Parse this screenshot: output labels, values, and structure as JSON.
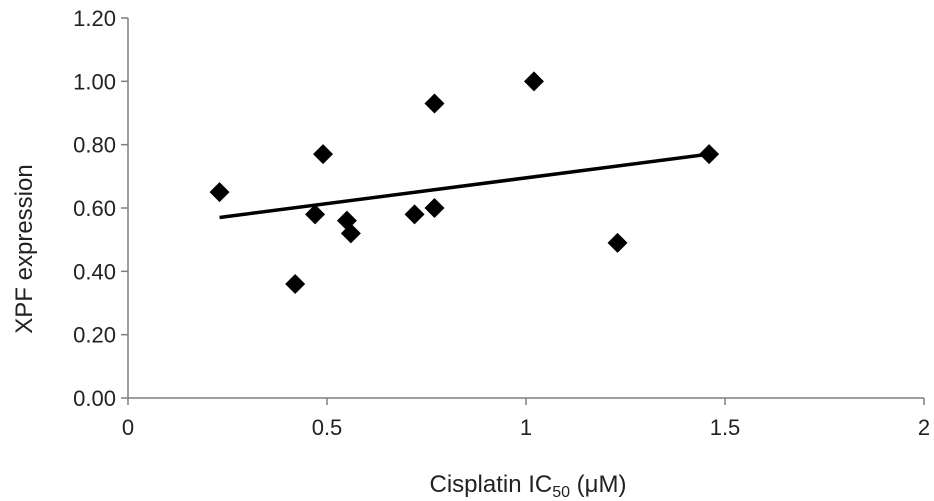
{
  "chart_data": {
    "type": "scatter",
    "title": "",
    "xlabel": {
      "main": "Cisplatin  IC",
      "subscript": "50",
      "unit": " (μM)"
    },
    "ylabel": "XPF expression",
    "xlim": [
      0,
      2
    ],
    "ylim": [
      0,
      1.2
    ],
    "x_ticks": [
      0,
      0.5,
      1,
      1.5,
      2
    ],
    "x_tick_labels": [
      "0",
      "0.5",
      "1",
      "1.5",
      "2"
    ],
    "y_ticks": [
      0,
      0.2,
      0.4,
      0.6,
      0.8,
      1.0,
      1.2
    ],
    "y_tick_labels": [
      "0.00",
      "0.20",
      "0.40",
      "0.60",
      "0.80",
      "1.00",
      "1.20"
    ],
    "grid": false,
    "legend": "none",
    "marker": "diamond",
    "marker_color": "#000000",
    "points": [
      {
        "x": 0.23,
        "y": 0.65
      },
      {
        "x": 0.42,
        "y": 0.36
      },
      {
        "x": 0.47,
        "y": 0.58
      },
      {
        "x": 0.49,
        "y": 0.77
      },
      {
        "x": 0.55,
        "y": 0.56
      },
      {
        "x": 0.56,
        "y": 0.52
      },
      {
        "x": 0.72,
        "y": 0.58
      },
      {
        "x": 0.77,
        "y": 0.6
      },
      {
        "x": 0.77,
        "y": 0.93
      },
      {
        "x": 1.02,
        "y": 1.0
      },
      {
        "x": 1.23,
        "y": 0.49
      },
      {
        "x": 1.46,
        "y": 0.77
      }
    ],
    "trendline": {
      "type": "linear",
      "x": [
        0.23,
        1.46
      ],
      "y": [
        0.57,
        0.77
      ],
      "color": "#000000"
    }
  }
}
